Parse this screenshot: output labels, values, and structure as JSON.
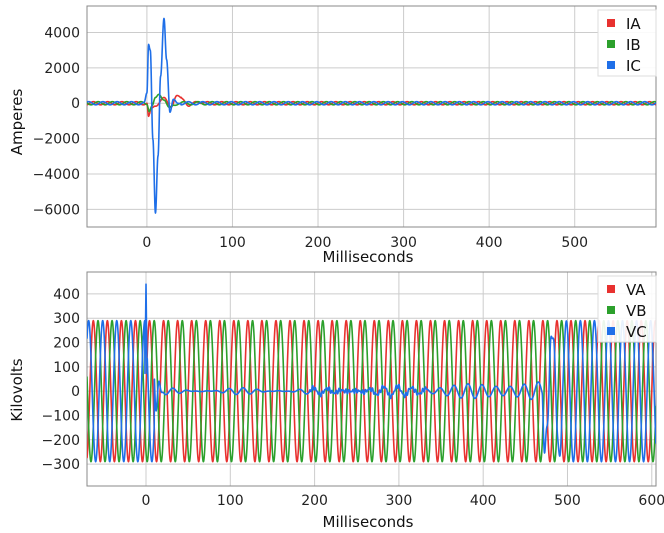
{
  "chart_data": [
    {
      "type": "line",
      "title": "",
      "xlabel": "Milliseconds",
      "ylabel": "Amperes",
      "xlim": [
        -70,
        595
      ],
      "ylim": [
        -7000,
        5500
      ],
      "xticks": [
        0,
        100,
        200,
        300,
        400,
        500
      ],
      "yticks": [
        -6000,
        -4000,
        -2000,
        0,
        2000,
        4000
      ],
      "xtick_labels": [
        "0",
        "100",
        "200",
        "300",
        "400",
        "500"
      ],
      "ytick_labels": [
        "−6000",
        "−4000",
        "−2000",
        "0",
        "2000",
        "4000"
      ],
      "grid": true,
      "legend_position": "top-right",
      "series": [
        {
          "name": "IA",
          "color": "#e8312f",
          "steady_amplitude": 90,
          "phase_deg": 0,
          "fault_points": [
            [
              0,
              0
            ],
            [
              2,
              -800
            ],
            [
              5,
              -300
            ],
            [
              10,
              -150
            ],
            [
              20,
              300
            ],
            [
              28,
              -200
            ],
            [
              35,
              420
            ],
            [
              42,
              250
            ],
            [
              50,
              -150
            ],
            [
              60,
              100
            ],
            [
              70,
              0
            ]
          ]
        },
        {
          "name": "IB",
          "color": "#2ca02c",
          "steady_amplitude": 90,
          "phase_deg": 120,
          "fault_points": [
            [
              0,
              0
            ],
            [
              3,
              -400
            ],
            [
              6,
              -150
            ],
            [
              10,
              300
            ],
            [
              14,
              500
            ],
            [
              20,
              200
            ],
            [
              26,
              -250
            ],
            [
              32,
              -100
            ],
            [
              40,
              0
            ]
          ]
        },
        {
          "name": "IC",
          "color": "#1f6fe8",
          "steady_amplitude": 90,
          "phase_deg": 240,
          "fault_points": [
            [
              -3,
              0
            ],
            [
              0,
              500
            ],
            [
              2,
              3300
            ],
            [
              4,
              3000
            ],
            [
              7,
              -2000
            ],
            [
              10,
              -6200
            ],
            [
              13,
              -3000
            ],
            [
              16,
              1500
            ],
            [
              20,
              4800
            ],
            [
              23,
              2500
            ],
            [
              27,
              -500
            ],
            [
              31,
              200
            ],
            [
              36,
              0
            ]
          ]
        }
      ],
      "frequency_hz": 60,
      "fault_start_ms": 0
    },
    {
      "type": "line",
      "title": "",
      "xlabel": "Milliseconds",
      "ylabel": "Kilovolts",
      "xlim": [
        -70,
        605
      ],
      "ylim": [
        -390,
        490
      ],
      "xticks": [
        0,
        100,
        200,
        300,
        400,
        500,
        600
      ],
      "yticks": [
        -300,
        -200,
        -100,
        0,
        100,
        200,
        300,
        400
      ],
      "xtick_labels": [
        "0",
        "100",
        "200",
        "300",
        "400",
        "500",
        "600"
      ],
      "ytick_labels": [
        "−300",
        "−200",
        "−100",
        "0",
        "100",
        "200",
        "300",
        "400"
      ],
      "grid": true,
      "legend_position": "top-right",
      "series": [
        {
          "name": "VA",
          "color": "#e8312f",
          "amplitude": 290,
          "phase_deg": 0
        },
        {
          "name": "VB",
          "color": "#2ca02c",
          "amplitude": 290,
          "phase_deg": 120
        },
        {
          "name": "VC",
          "color": "#1f6fe8",
          "amplitude": 290,
          "phase_deg": 240,
          "dead_from_ms": 10,
          "dead_to_ms": 470,
          "spike_kv": 440
        }
      ],
      "frequency_hz": 60
    }
  ]
}
